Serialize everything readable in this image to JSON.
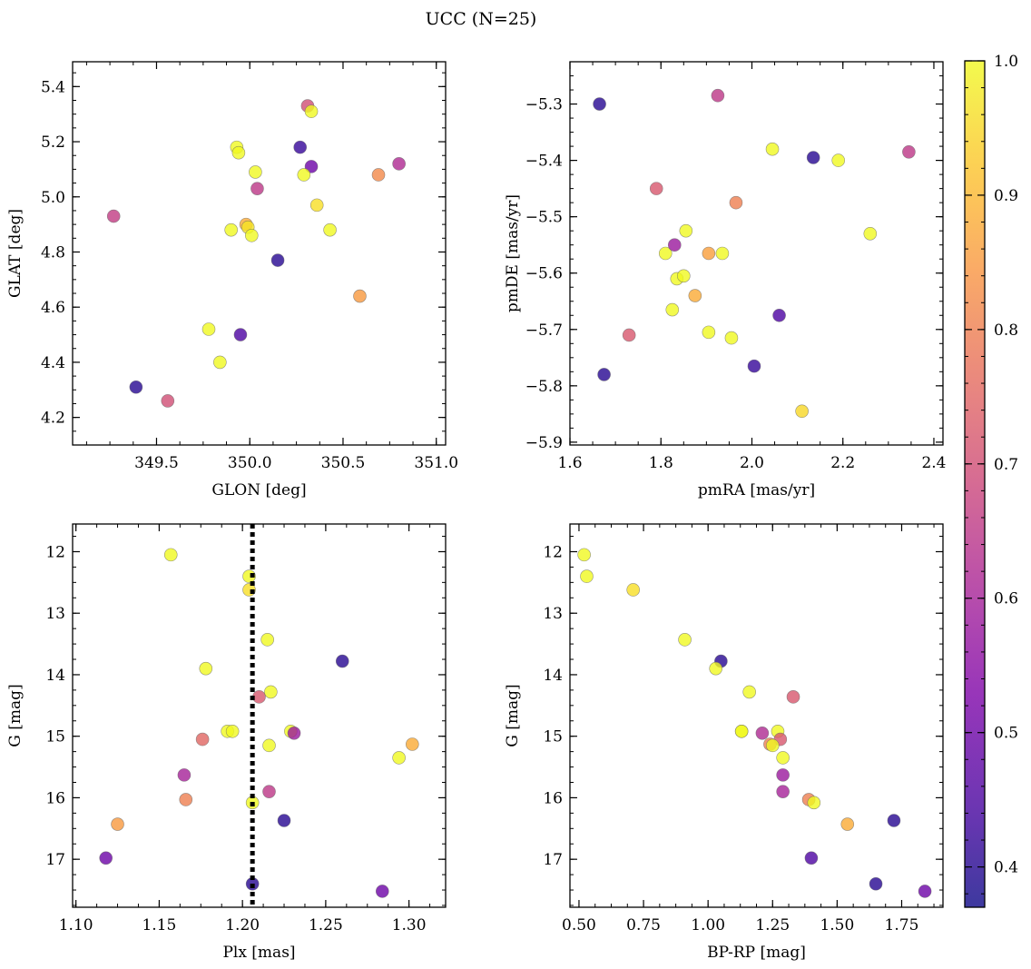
{
  "figure": {
    "title": "UCC (N=25)"
  },
  "colorbar": {
    "range": [
      0.37,
      1.0
    ],
    "ticks": [
      0.4,
      0.5,
      0.6,
      0.7,
      0.8,
      0.9,
      1.0
    ],
    "tick_labels": [
      "0.4",
      "0.5",
      "0.6",
      "0.7",
      "0.8",
      "0.9",
      "1.0"
    ],
    "colormap": "plasma",
    "point_alpha": 0.8
  },
  "chart_data": [
    {
      "type": "scatter",
      "xlabel": "GLON [deg]",
      "ylabel": "GLAT [deg]",
      "xlim": [
        349.05,
        351.05
      ],
      "ylim": [
        4.1,
        5.49
      ],
      "xticks": [
        349.5,
        350.0,
        350.5,
        351.0
      ],
      "xtick_labels": [
        "349.5",
        "350.0",
        "350.5",
        "351.0"
      ],
      "yticks": [
        4.2,
        4.4,
        4.6,
        4.8,
        5.0,
        5.2,
        5.4
      ],
      "ytick_labels": [
        "4.2",
        "4.4",
        "4.6",
        "4.8",
        "5.0",
        "5.2",
        "5.4"
      ],
      "x": [
        350.31,
        350.33,
        349.93,
        349.94,
        350.27,
        350.33,
        350.03,
        350.29,
        350.8,
        350.69,
        350.04,
        350.36,
        349.98,
        349.99,
        349.9,
        350.01,
        350.43,
        350.15,
        350.59,
        349.78,
        349.95,
        349.84,
        349.39,
        349.56,
        349.27
      ],
      "y": [
        5.33,
        5.31,
        5.18,
        5.16,
        5.18,
        5.11,
        5.09,
        5.08,
        5.12,
        5.08,
        5.03,
        4.97,
        4.9,
        4.89,
        4.88,
        4.86,
        4.88,
        4.77,
        4.64,
        4.52,
        4.5,
        4.4,
        4.31,
        4.26,
        4.93
      ],
      "c": [
        0.7,
        1.0,
        1.0,
        1.0,
        0.42,
        0.5,
        1.0,
        1.0,
        0.62,
        0.82,
        0.65,
        0.96,
        0.88,
        0.97,
        1.0,
        1.0,
        1.0,
        0.4,
        0.85,
        1.0,
        0.45,
        1.0,
        0.4,
        0.7,
        0.66
      ]
    },
    {
      "type": "scatter",
      "xlabel": "pmRA [mas/yr]",
      "ylabel": "pmDE [mas/yr]",
      "xlim": [
        1.6,
        2.42
      ],
      "ylim": [
        -5.905,
        -5.225
      ],
      "xticks": [
        1.6,
        1.8,
        2.0,
        2.2,
        2.4
      ],
      "xtick_labels": [
        "1.6",
        "1.8",
        "2.0",
        "2.2",
        "2.4"
      ],
      "yticks": [
        -5.9,
        -5.8,
        -5.7,
        -5.6,
        -5.5,
        -5.4,
        -5.3
      ],
      "ytick_labels": [
        "−5.9",
        "−5.8",
        "−5.7",
        "−5.6",
        "−5.5",
        "−5.4",
        "−5.3"
      ],
      "x": [
        1.665,
        1.925,
        2.345,
        2.135,
        2.045,
        2.19,
        1.79,
        1.965,
        1.855,
        2.26,
        1.81,
        1.83,
        1.905,
        1.935,
        1.835,
        1.85,
        1.875,
        1.825,
        2.06,
        1.73,
        1.905,
        1.955,
        1.675,
        2.005,
        2.11
      ],
      "y": [
        -5.3,
        -5.285,
        -5.385,
        -5.395,
        -5.38,
        -5.4,
        -5.45,
        -5.475,
        -5.525,
        -5.53,
        -5.565,
        -5.55,
        -5.565,
        -5.565,
        -5.61,
        -5.605,
        -5.64,
        -5.665,
        -5.675,
        -5.71,
        -5.705,
        -5.715,
        -5.78,
        -5.765,
        -5.845
      ],
      "c": [
        0.4,
        0.65,
        0.65,
        0.4,
        1.0,
        1.0,
        0.72,
        0.8,
        1.0,
        1.0,
        1.0,
        0.58,
        0.86,
        1.0,
        1.0,
        1.0,
        0.88,
        1.0,
        0.45,
        0.72,
        1.0,
        1.0,
        0.4,
        0.42,
        0.95
      ]
    },
    {
      "type": "scatter",
      "xlabel": "Plx [mas]",
      "ylabel": "G [mag]",
      "xlim": [
        1.098,
        1.322
      ],
      "ylim": [
        17.78,
        11.55
      ],
      "xticks": [
        1.1,
        1.15,
        1.2,
        1.25,
        1.3
      ],
      "xtick_labels": [
        "1.10",
        "1.15",
        "1.20",
        "1.25",
        "1.30"
      ],
      "yticks": [
        12,
        13,
        14,
        15,
        16,
        17
      ],
      "ytick_labels": [
        "12",
        "13",
        "14",
        "15",
        "16",
        "17"
      ],
      "vline": 1.206,
      "x": [
        1.157,
        1.204,
        1.204,
        1.215,
        1.26,
        1.178,
        1.217,
        1.21,
        1.191,
        1.194,
        1.229,
        1.231,
        1.176,
        1.216,
        1.302,
        1.294,
        1.165,
        1.216,
        1.166,
        1.206,
        1.125,
        1.225,
        1.118,
        1.206,
        1.284
      ],
      "y": [
        12.05,
        12.4,
        12.62,
        13.43,
        13.78,
        13.9,
        14.28,
        14.36,
        14.92,
        14.92,
        14.92,
        14.95,
        15.05,
        15.15,
        15.13,
        15.35,
        15.63,
        15.9,
        16.03,
        16.08,
        16.43,
        16.37,
        16.98,
        17.4,
        17.52
      ],
      "c": [
        1.0,
        1.0,
        0.96,
        1.0,
        0.4,
        1.0,
        1.0,
        0.72,
        1.0,
        1.0,
        1.0,
        0.58,
        0.75,
        1.0,
        0.88,
        1.0,
        0.6,
        0.65,
        0.8,
        1.0,
        0.85,
        0.4,
        0.5,
        0.4,
        0.5
      ]
    },
    {
      "type": "scatter",
      "xlabel": "BP-RP [mag]",
      "ylabel": "G [mag]",
      "xlim": [
        0.465,
        1.91
      ],
      "ylim": [
        17.78,
        11.55
      ],
      "xticks": [
        0.5,
        0.75,
        1.0,
        1.25,
        1.5,
        1.75
      ],
      "xtick_labels": [
        "0.50",
        "0.75",
        "1.00",
        "1.25",
        "1.50",
        "1.75"
      ],
      "yticks": [
        12,
        13,
        14,
        15,
        16,
        17
      ],
      "ytick_labels": [
        "12",
        "13",
        "14",
        "15",
        "16",
        "17"
      ],
      "x": [
        0.52,
        0.53,
        0.71,
        0.91,
        1.05,
        1.03,
        1.16,
        1.33,
        1.13,
        1.21,
        1.27,
        1.28,
        1.24,
        1.25,
        1.29,
        1.29,
        1.29,
        1.39,
        1.41,
        1.54,
        1.72,
        1.4,
        1.65,
        1.84,
        1.13
      ],
      "y": [
        12.05,
        12.4,
        12.62,
        13.43,
        13.78,
        13.9,
        14.28,
        14.36,
        14.92,
        14.95,
        14.92,
        15.05,
        15.13,
        15.15,
        15.35,
        15.63,
        15.9,
        16.03,
        16.08,
        16.43,
        16.37,
        16.98,
        17.4,
        17.52,
        14.92
      ],
      "c": [
        1.0,
        1.0,
        0.96,
        1.0,
        0.4,
        1.0,
        1.0,
        0.72,
        1.0,
        0.62,
        1.0,
        0.72,
        0.8,
        1.0,
        1.0,
        0.58,
        0.6,
        0.8,
        1.0,
        0.88,
        0.4,
        0.45,
        0.4,
        0.5,
        1.0
      ]
    }
  ]
}
